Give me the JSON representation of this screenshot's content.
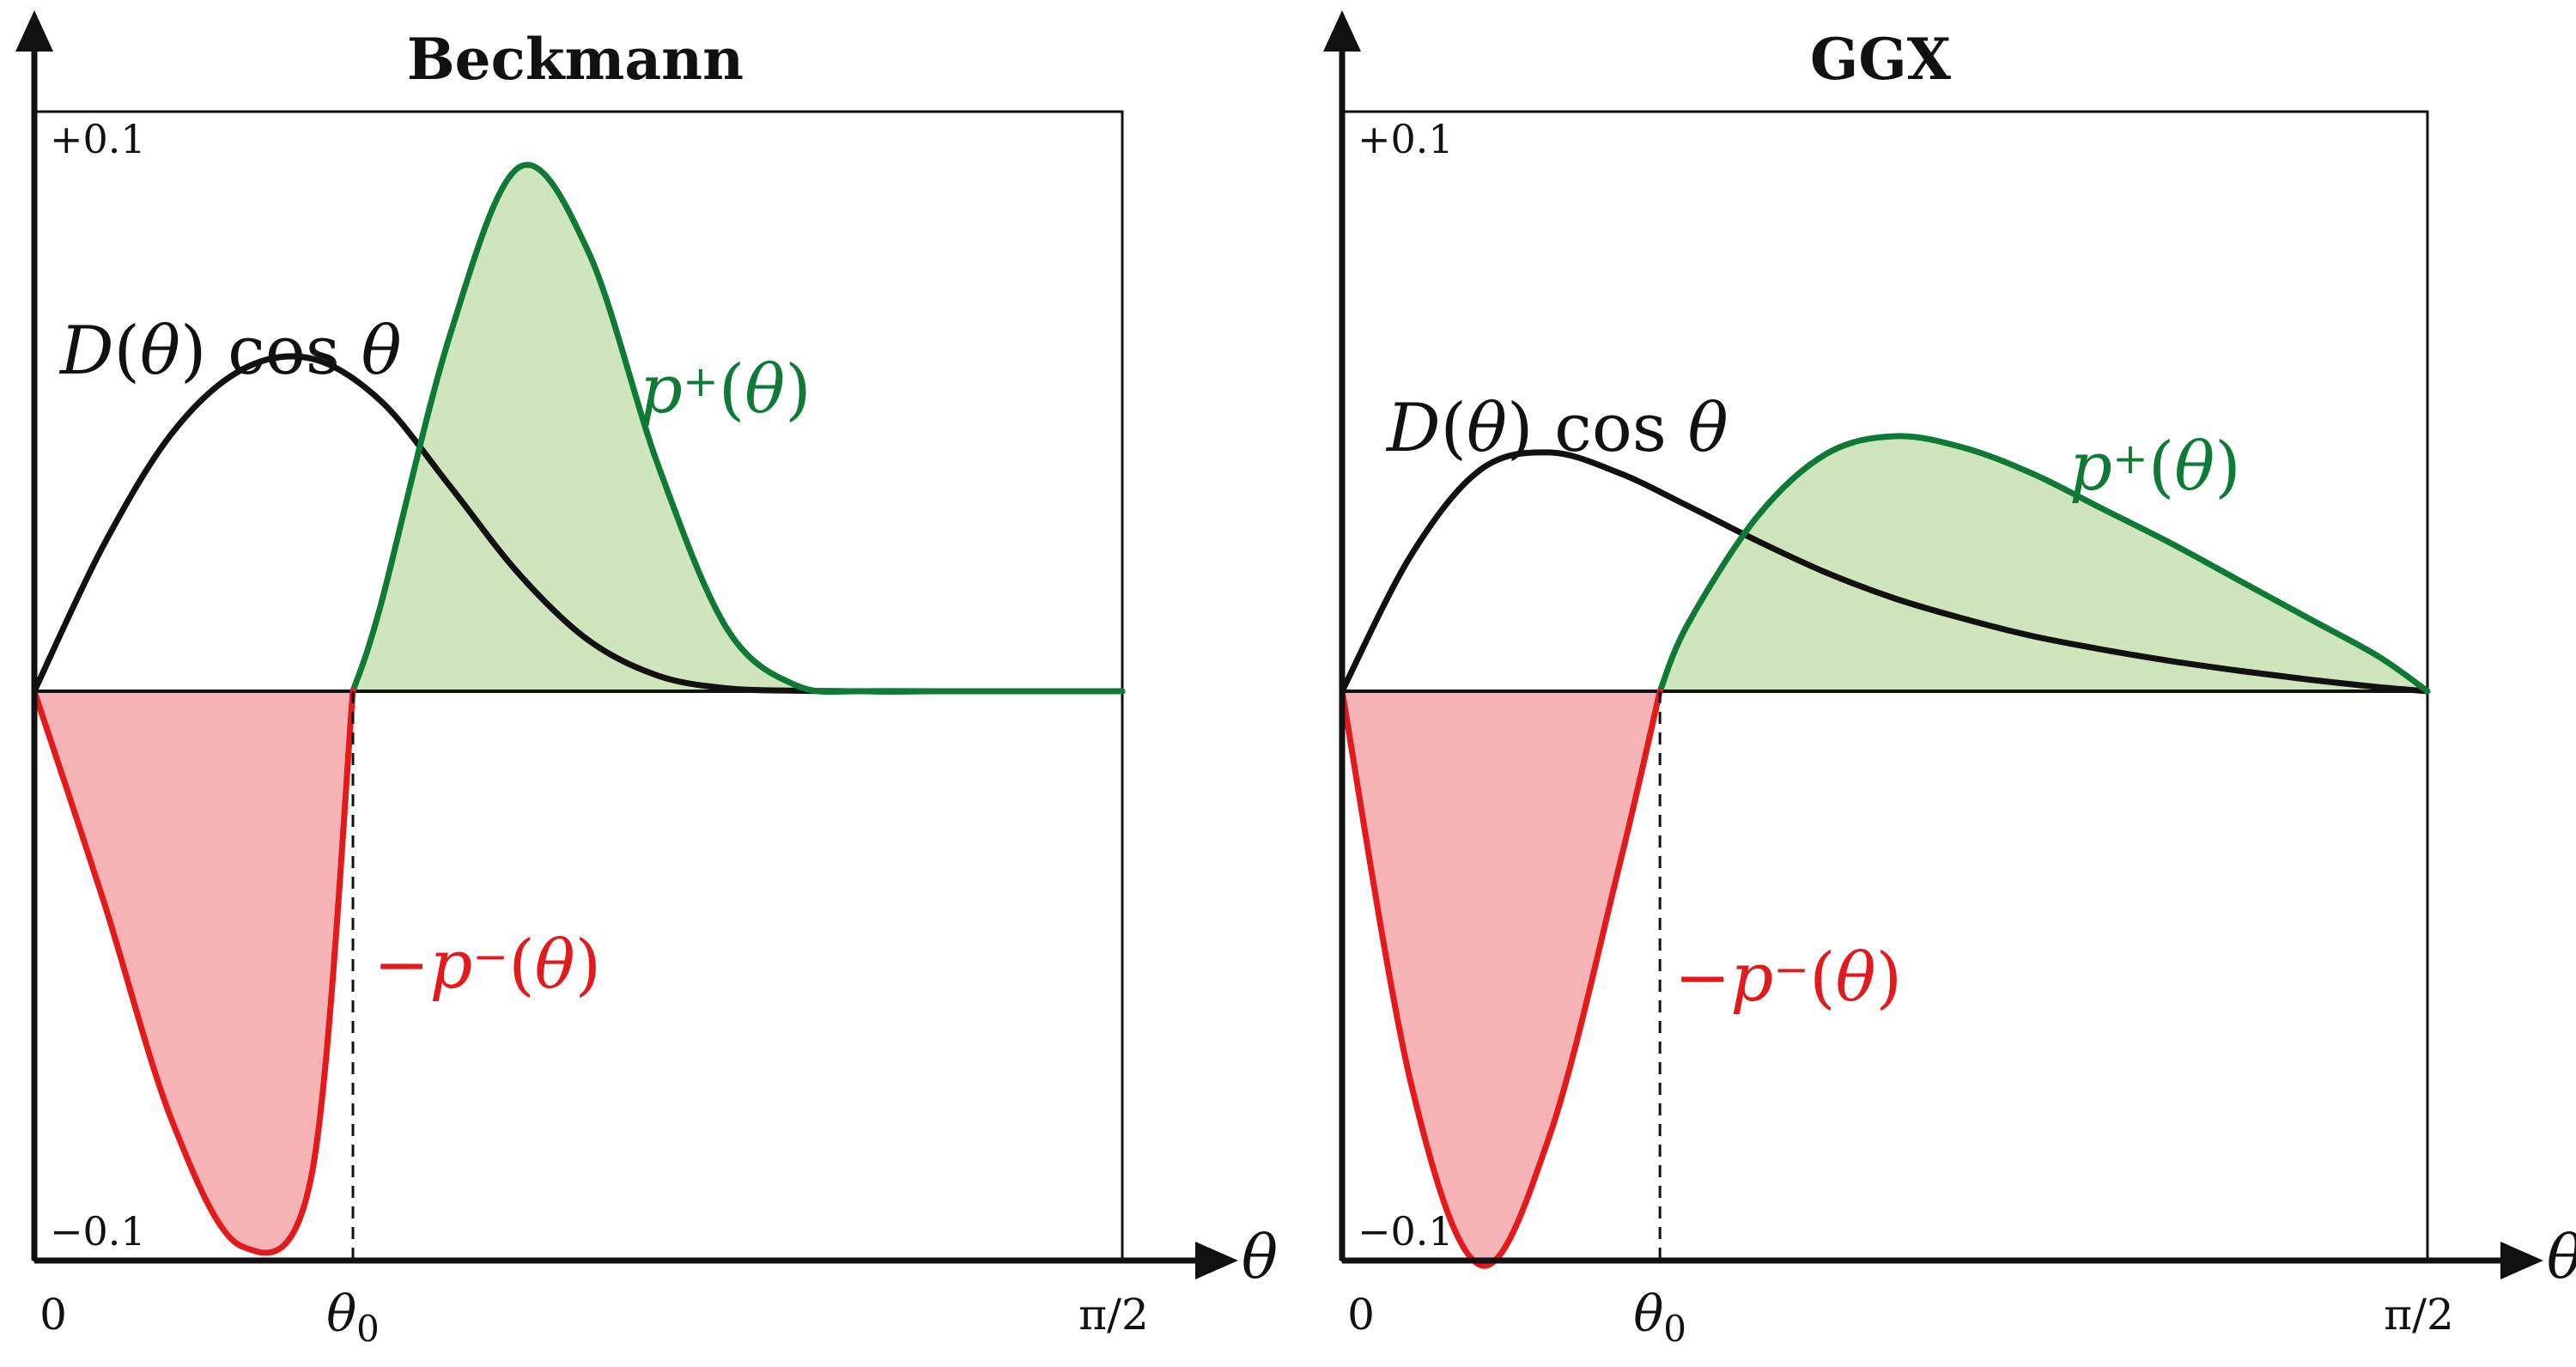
{
  "chart_data": [
    {
      "type": "area",
      "title": "Beckmann",
      "xlabel": "θ",
      "x_ticks": {
        "start": "0",
        "theta0": "θ0",
        "end": "π/2"
      },
      "ylim": [
        -0.1,
        0.1
      ],
      "y_ticks": {
        "top": "+0.1",
        "bottom": "−0.1"
      },
      "theta0": 0.46,
      "x": [
        0.0,
        0.1,
        0.2,
        0.3,
        0.4,
        0.5,
        0.6,
        0.7,
        0.8,
        0.9,
        1.0,
        1.1,
        1.2,
        1.3,
        1.4,
        1.5,
        1.5708
      ],
      "series": [
        {
          "name": "D(θ) cos θ",
          "color": "#111111",
          "fill": "none",
          "values": [
            0.0,
            0.0252,
            0.0447,
            0.0555,
            0.0574,
            0.0501,
            0.0354,
            0.0202,
            0.0088,
            0.0027,
            0.0005,
            0.0001,
            0.0,
            0.0,
            0.0,
            0.0,
            0.0
          ]
        },
        {
          "name": "p⁺(θ)",
          "color": "#0f7a35",
          "fill": "#cfe6bd",
          "values": [
            null,
            null,
            null,
            null,
            null,
            0.0148,
            0.0614,
            0.0904,
            0.0758,
            0.0392,
            0.0108,
            0.001,
            0.0,
            0.0,
            0.0,
            0.0,
            0.0
          ]
        },
        {
          "name": "−p⁻(θ)",
          "color": "#e31a1c",
          "fill": "#f5b3b5",
          "values": [
            0.0,
            -0.0362,
            -0.0745,
            -0.0958,
            -0.0837,
            null,
            null,
            null,
            null,
            null,
            null,
            null,
            null,
            null,
            null,
            null,
            null
          ]
        }
      ]
    },
    {
      "type": "area",
      "title": "GGX",
      "xlabel": "θ",
      "x_ticks": {
        "start": "0",
        "theta0": "θ0",
        "end": "π/2"
      },
      "ylim": [
        -0.1,
        0.1
      ],
      "y_ticks": {
        "top": "+0.1",
        "bottom": "−0.1"
      },
      "theta0": 0.46,
      "x": [
        0.0,
        0.1,
        0.2,
        0.3,
        0.4,
        0.5,
        0.6,
        0.7,
        0.8,
        0.9,
        1.0,
        1.1,
        1.2,
        1.3,
        1.4,
        1.5,
        1.5708
      ],
      "series": [
        {
          "name": "D(θ) cos θ",
          "color": "#111111",
          "fill": "none",
          "values": [
            0.0,
            0.0235,
            0.0382,
            0.0412,
            0.0377,
            0.032,
            0.026,
            0.0205,
            0.016,
            0.0125,
            0.0095,
            0.0072,
            0.0052,
            0.0035,
            0.002,
            0.0007,
            0.0
          ]
        },
        {
          "name": "p⁺(θ)",
          "color": "#0f7a35",
          "fill": "#cfe6bd",
          "values": [
            null,
            null,
            null,
            null,
            null,
            0.0115,
            0.03,
            0.0409,
            0.044,
            0.042,
            0.0375,
            0.0315,
            0.0255,
            0.019,
            0.0125,
            0.006,
            0.0
          ]
        },
        {
          "name": "−p⁻(θ)",
          "color": "#e31a1c",
          "fill": "#f5b3b5",
          "values": [
            0.0,
            -0.0678,
            -0.099,
            -0.0768,
            -0.0307,
            null,
            null,
            null,
            null,
            null,
            null,
            null,
            null,
            null,
            null,
            null,
            null
          ]
        }
      ]
    }
  ]
}
